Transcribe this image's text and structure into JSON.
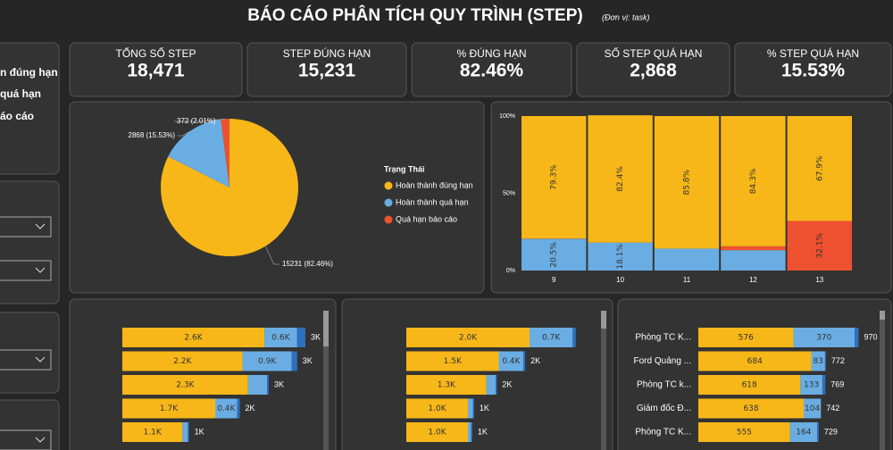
{
  "header": {
    "title": "BÁO CÁO PHÂN TÍCH QUY TRÌNH (STEP)",
    "unit": "(Đơn vị: task)"
  },
  "sidebar": {
    "items": [
      "n đúng hạn",
      "quá hạn",
      "áo cáo"
    ]
  },
  "kpis": [
    {
      "label": "TỔNG SỐ STEP",
      "value": "18,471"
    },
    {
      "label": "STEP ĐÚNG HẠN",
      "value": "15,231"
    },
    {
      "label": "% ĐÚNG HẠN",
      "value": "82.46%"
    },
    {
      "label": "SỐ STEP QUÁ HẠN",
      "value": "2,868"
    },
    {
      "label": "% STEP QUÁ HẠN",
      "value": "15.53%"
    }
  ],
  "chart_data": [
    {
      "type": "pie",
      "legend_title": "Trạng Thái",
      "categories": [
        "Hoàn thành đúng hạn",
        "Hoàn thành quá hạn",
        "Quá hạn báo cáo"
      ],
      "colors": [
        "#f7b718",
        "#6aade2",
        "#ee5130"
      ],
      "values": [
        15231,
        2868,
        372
      ],
      "value_labels": [
        "15231 (82.46%)",
        "2868 (15.53%)",
        "372 (2.01%)"
      ]
    },
    {
      "type": "bar100",
      "categories": [
        9,
        10,
        11,
        12,
        13
      ],
      "ylim": [
        0,
        100
      ],
      "yticks": [
        {
          "value": 0,
          "label": "0%"
        },
        {
          "value": 50,
          "label": "50%"
        },
        {
          "value": 100,
          "label": "100%"
        }
      ],
      "series": [
        {
          "color": "#6aade2",
          "values": [
            20.5,
            18.1,
            14.2,
            13.2,
            0
          ],
          "value_labels": [
            "20.5%",
            "18.1%",
            null,
            null,
            null
          ]
        },
        {
          "color": "#ee5130",
          "values": [
            0.2,
            0,
            0,
            2.5,
            32.1
          ],
          "value_labels": [
            null,
            null,
            null,
            null,
            "32.1%"
          ]
        },
        {
          "color": "#f7b718",
          "values": [
            79.3,
            82.4,
            85.8,
            84.3,
            67.9
          ],
          "value_labels": [
            "79.3%",
            "82.4%",
            "85.8%",
            "84.3%",
            "67.9%"
          ]
        }
      ]
    },
    {
      "type": "hbar",
      "xlim": [
        0,
        3400
      ],
      "series": [
        {
          "color": "#f7b718",
          "values": [
            2600,
            2200,
            2300,
            1700,
            1100
          ],
          "value_labels": [
            "2.6K",
            "2.2K",
            "2.3K",
            "1.7K",
            "1.1K"
          ]
        },
        {
          "color": "#6aade2",
          "values": [
            600,
            900,
            350,
            400,
            100
          ],
          "value_labels": [
            "0.6K",
            "0.9K",
            null,
            "0.4K",
            null
          ]
        },
        {
          "color": "#2f6fbf",
          "values": [
            150,
            100,
            30,
            50,
            20
          ],
          "value_labels": [
            null,
            null,
            null,
            null,
            null
          ]
        }
      ],
      "totals": [
        3000,
        3000,
        3000,
        2000,
        1000
      ],
      "total_labels": [
        "3K",
        "3K",
        "3K",
        "2K",
        "1K"
      ]
    },
    {
      "type": "hbar",
      "xlim": [
        0,
        3000
      ],
      "series": [
        {
          "color": "#f7b718",
          "values": [
            2000,
            1500,
            1300,
            1000,
            1000
          ],
          "value_labels": [
            "2.0K",
            "1.5K",
            "1.3K",
            "1.0K",
            "1.0K"
          ]
        },
        {
          "color": "#6aade2",
          "values": [
            700,
            400,
            150,
            80,
            50
          ],
          "value_labels": [
            "0.7K",
            "0.4K",
            null,
            null,
            null
          ]
        },
        {
          "color": "#2f6fbf",
          "values": [
            50,
            30,
            20,
            20,
            20
          ],
          "value_labels": [
            null,
            null,
            null,
            null,
            null
          ]
        }
      ],
      "totals": [
        null,
        2000,
        2000,
        1000,
        1000
      ],
      "total_labels": [
        null,
        "2K",
        "2K",
        "1K",
        "1K"
      ]
    },
    {
      "type": "hbar",
      "xlim": [
        0,
        1000
      ],
      "categories": [
        "Phòng TC K...",
        "Ford Quảng ...",
        "Phòng TC k...",
        "Giám đốc Đ...",
        "Phòng TC K..."
      ],
      "series": [
        {
          "color": "#f7b718",
          "values": [
            576,
            684,
            618,
            638,
            555
          ]
        },
        {
          "color": "#6aade2",
          "values": [
            370,
            83,
            133,
            104,
            164
          ]
        },
        {
          "color": "#2f6fbf",
          "values": [
            24,
            5,
            18,
            0,
            10
          ]
        }
      ],
      "totals": [
        970,
        772,
        769,
        742,
        729
      ]
    }
  ]
}
